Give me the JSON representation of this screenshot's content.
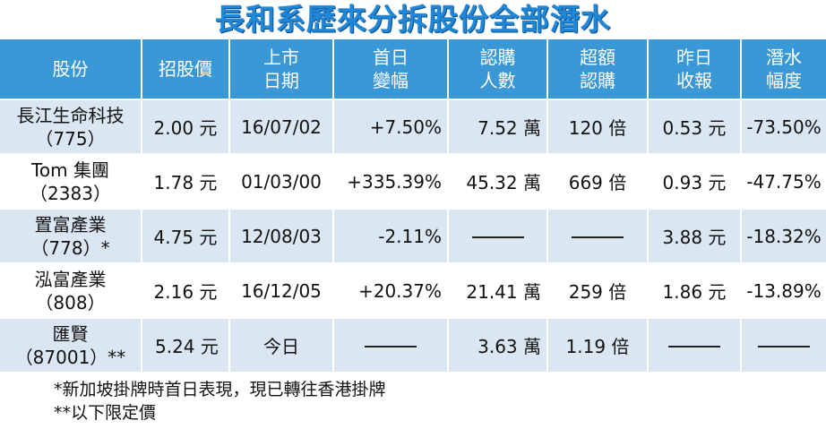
{
  "title": "長和系歷來分拆股份全部潛水",
  "headers": [
    {
      "l1": "股份",
      "l2": ""
    },
    {
      "l1": "招股價",
      "l2": ""
    },
    {
      "l1": "上市",
      "l2": "日期"
    },
    {
      "l1": "首日",
      "l2": "變幅"
    },
    {
      "l1": "認購",
      "l2": "人數"
    },
    {
      "l1": "超額",
      "l2": "認購"
    },
    {
      "l1": "昨日",
      "l2": "收報"
    },
    {
      "l1": "潛水",
      "l2": "幅度"
    }
  ],
  "rows": [
    {
      "name": "長江生命科技",
      "code": "（775）",
      "ipo_price": "2.00 元",
      "list_date": "16/07/02",
      "first_day_change": "+7.50%",
      "subscribers": "7.52 萬",
      "oversubscription": "120 倍",
      "last_close": "0.53 元",
      "drop": "-73.50%"
    },
    {
      "name": "Tom 集團",
      "code": "（2383）",
      "ipo_price": "1.78 元",
      "list_date": "01/03/00",
      "first_day_change": "+335.39%",
      "subscribers": "45.32 萬",
      "oversubscription": "669 倍",
      "last_close": "0.93 元",
      "drop": "-47.75%"
    },
    {
      "name": "置富產業",
      "code": "（778）*",
      "ipo_price": "4.75 元",
      "list_date": "12/08/03",
      "first_day_change": "-2.11%",
      "subscribers": "",
      "oversubscription": "",
      "last_close": "3.88 元",
      "drop": "-18.32%"
    },
    {
      "name": "泓富產業",
      "code": "（808）",
      "ipo_price": "2.16 元",
      "list_date": "16/12/05",
      "first_day_change": "+20.37%",
      "subscribers": "21.41 萬",
      "oversubscription": "259 倍",
      "last_close": "1.86 元",
      "drop": "-13.89%"
    },
    {
      "name": "匯賢",
      "code": "（87001）**",
      "ipo_price": "5.24 元",
      "list_date": "今日",
      "first_day_change": "",
      "subscribers": "3.63 萬",
      "oversubscription": "1.19 倍",
      "last_close": "",
      "drop": ""
    }
  ],
  "notes": [
    "*新加坡掛牌時首日表現，現已轉往香港掛牌",
    "**以下限定價"
  ],
  "colors": {
    "title": "#1f87d8",
    "header_bg": "#3a98d6",
    "stripe": "#dbe6f3"
  }
}
